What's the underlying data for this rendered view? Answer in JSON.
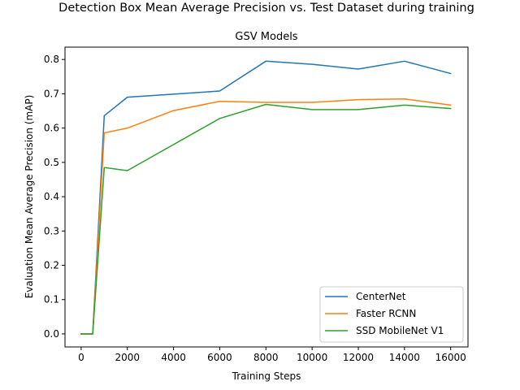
{
  "chart_data": {
    "type": "line",
    "title": "Detection Box Mean Average Precision vs. Test Dataset during training",
    "subtitle": "GSV Models",
    "xlabel": "Training Steps",
    "ylabel": "Evaluation Mean Average Precision (mAP)",
    "xlim": [
      -700,
      16750
    ],
    "ylim": [
      -0.038,
      0.836
    ],
    "xticks": [
      0,
      2000,
      4000,
      6000,
      8000,
      10000,
      12000,
      14000,
      16000
    ],
    "yticks": [
      0.0,
      0.1,
      0.2,
      0.3,
      0.4,
      0.5,
      0.6,
      0.7,
      0.8
    ],
    "xtick_labels": [
      "0",
      "2000",
      "4000",
      "6000",
      "8000",
      "10000",
      "12000",
      "14000",
      "16000"
    ],
    "ytick_labels": [
      "0.0",
      "0.1",
      "0.2",
      "0.3",
      "0.4",
      "0.5",
      "0.6",
      "0.7",
      "0.8"
    ],
    "grid": false,
    "legend_position": "lower-right",
    "series": [
      {
        "name": "CenterNet",
        "color": "#1f77b4",
        "x": [
          0,
          500,
          1000,
          2000,
          6000,
          8000,
          10000,
          12000,
          14000,
          16000
        ],
        "y": [
          0.0,
          0.0,
          0.636,
          0.69,
          0.708,
          0.795,
          0.786,
          0.772,
          0.795,
          0.759
        ]
      },
      {
        "name": "Faster RCNN",
        "color": "#ff7f0e",
        "x": [
          0,
          500,
          1000,
          2000,
          4000,
          6000,
          8000,
          10000,
          12000,
          14000,
          16000
        ],
        "y": [
          0.0,
          0.0,
          0.586,
          0.6,
          0.651,
          0.678,
          0.675,
          0.675,
          0.683,
          0.685,
          0.667
        ]
      },
      {
        "name": "SSD MobileNet V1",
        "color": "#2ca02c",
        "x": [
          0,
          500,
          1000,
          2000,
          6000,
          8000,
          10000,
          12000,
          14000,
          16000
        ],
        "y": [
          0.0,
          0.0,
          0.485,
          0.476,
          0.628,
          0.669,
          0.654,
          0.654,
          0.667,
          0.657
        ]
      }
    ]
  }
}
